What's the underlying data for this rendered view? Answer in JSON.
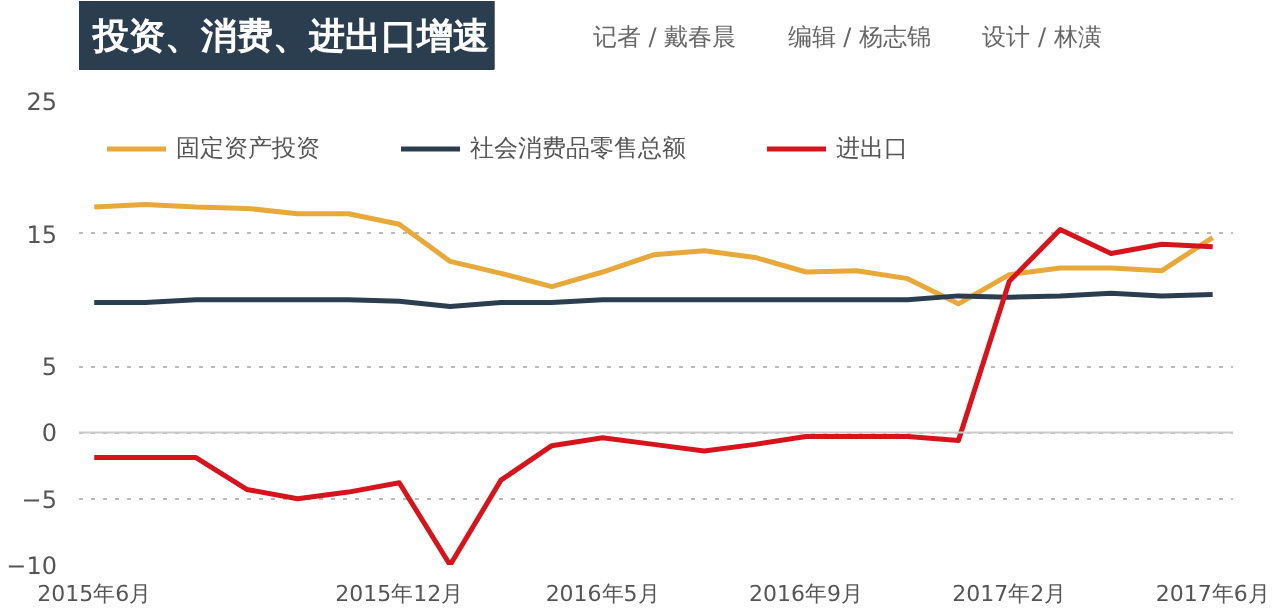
{
  "chart_data": {
    "type": "line",
    "title": "投资、消费、进出口增速",
    "annotations": [
      "记者 / 戴春晨",
      "编辑 / 杨志锦",
      "设计 / 林潢"
    ],
    "categories": [
      "2015年6月",
      null,
      null,
      null,
      null,
      null,
      "2015年12月",
      null,
      null,
      null,
      "2016年5月",
      null,
      null,
      null,
      "2016年9月",
      null,
      null,
      null,
      "2017年2月",
      null,
      null,
      null,
      "2017年6月"
    ],
    "series": [
      {
        "name": "固定资产投资",
        "color": "#e8a93a",
        "values": [
          17.0,
          17.2,
          17.0,
          16.9,
          16.5,
          16.5,
          15.7,
          12.9,
          12.0,
          11.0,
          12.1,
          13.4,
          13.7,
          13.2,
          12.1,
          12.2,
          11.6,
          9.7,
          11.9,
          12.4,
          12.4,
          12.2,
          14.7
        ]
      },
      {
        "name": "社会消费品零售总额",
        "color": "#2b3e4f",
        "values": [
          9.8,
          9.8,
          10.0,
          10.0,
          10.0,
          10.0,
          9.9,
          9.5,
          9.8,
          9.8,
          10.0,
          10.0,
          10.0,
          10.0,
          10.0,
          10.0,
          10.0,
          10.3,
          10.2,
          10.3,
          10.5,
          10.3,
          10.4
        ]
      },
      {
        "name": "进出口",
        "color": "#d7141c",
        "values": [
          -1.9,
          -1.9,
          -1.9,
          -4.3,
          -5.0,
          -4.5,
          -3.8,
          -10.0,
          -3.6,
          -1.0,
          -0.4,
          -0.9,
          -1.4,
          -0.9,
          -0.3,
          -0.3,
          -0.3,
          -0.6,
          11.4,
          15.3,
          13.5,
          14.2,
          14.0
        ]
      }
    ],
    "ylim": [
      -10,
      25
    ],
    "yticks": [
      25,
      15,
      5,
      0,
      -5,
      -10
    ],
    "ref_lines": [
      {
        "axis": "y",
        "value": 0,
        "color": "#cccccc"
      }
    ],
    "grid": "y",
    "legend": "top",
    "line_style": "solid"
  }
}
